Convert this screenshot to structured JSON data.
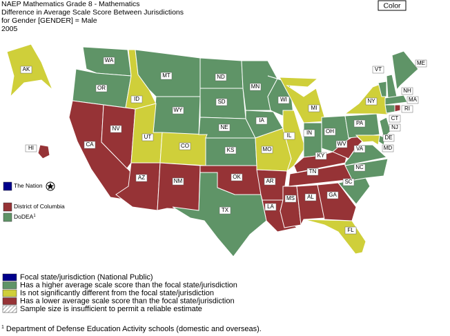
{
  "header": {
    "lines": [
      "NAEP Mathematics Grade 8 - Mathematics",
      "Difference in Average Scale Score Between Jurisdictions",
      "for Gender [GENDER] = Male",
      "2005"
    ]
  },
  "button": "Color",
  "colors": {
    "focal": "#00008b",
    "higher": "#5f9467",
    "same": "#cfcf3a",
    "lower": "#963336"
  },
  "states": [
    {
      "abbr": "WA",
      "status": "higher"
    },
    {
      "abbr": "OR",
      "status": "higher"
    },
    {
      "abbr": "CA",
      "status": "lower"
    },
    {
      "abbr": "NV",
      "status": "lower"
    },
    {
      "abbr": "ID",
      "status": "same"
    },
    {
      "abbr": "MT",
      "status": "higher"
    },
    {
      "abbr": "WY",
      "status": "higher"
    },
    {
      "abbr": "UT",
      "status": "same"
    },
    {
      "abbr": "CO",
      "status": "same"
    },
    {
      "abbr": "AZ",
      "status": "lower"
    },
    {
      "abbr": "NM",
      "status": "lower"
    },
    {
      "abbr": "ND",
      "status": "higher"
    },
    {
      "abbr": "SD",
      "status": "higher"
    },
    {
      "abbr": "NE",
      "status": "higher"
    },
    {
      "abbr": "KS",
      "status": "higher"
    },
    {
      "abbr": "OK",
      "status": "lower"
    },
    {
      "abbr": "TX",
      "status": "higher"
    },
    {
      "abbr": "MN",
      "status": "higher"
    },
    {
      "abbr": "IA",
      "status": "higher"
    },
    {
      "abbr": "MO",
      "status": "same"
    },
    {
      "abbr": "AR",
      "status": "lower"
    },
    {
      "abbr": "LA",
      "status": "lower"
    },
    {
      "abbr": "WI",
      "status": "higher"
    },
    {
      "abbr": "IL",
      "status": "same"
    },
    {
      "abbr": "MI",
      "status": "same"
    },
    {
      "abbr": "IN",
      "status": "higher"
    },
    {
      "abbr": "OH",
      "status": "higher"
    },
    {
      "abbr": "KY",
      "status": "lower"
    },
    {
      "abbr": "TN",
      "status": "lower"
    },
    {
      "abbr": "MS",
      "status": "lower"
    },
    {
      "abbr": "AL",
      "status": "lower"
    },
    {
      "abbr": "GA",
      "status": "lower"
    },
    {
      "abbr": "FL",
      "status": "same"
    },
    {
      "abbr": "SC",
      "status": "higher"
    },
    {
      "abbr": "NC",
      "status": "higher"
    },
    {
      "abbr": "VA",
      "status": "higher"
    },
    {
      "abbr": "WV",
      "status": "lower"
    },
    {
      "abbr": "PA",
      "status": "higher"
    },
    {
      "abbr": "NY",
      "status": "same"
    },
    {
      "abbr": "NJ",
      "status": "higher"
    },
    {
      "abbr": "DE",
      "status": "higher"
    },
    {
      "abbr": "MD",
      "status": "same"
    },
    {
      "abbr": "VT",
      "status": "higher"
    },
    {
      "abbr": "NH",
      "status": "higher"
    },
    {
      "abbr": "ME",
      "status": "higher"
    },
    {
      "abbr": "MA",
      "status": "higher"
    },
    {
      "abbr": "CT",
      "status": "higher"
    },
    {
      "abbr": "RI",
      "status": "lower"
    },
    {
      "abbr": "AK",
      "status": "same"
    },
    {
      "abbr": "HI",
      "status": "lower"
    }
  ],
  "side_legend": [
    {
      "label": "The Nation",
      "status": "focal"
    },
    {
      "label": "District of Columbia",
      "status": "lower"
    },
    {
      "label": "DoDEA",
      "sup": "1",
      "status": "higher"
    }
  ],
  "legend": [
    {
      "label": "Focal state/jurisdiction (National Public)",
      "status": "focal"
    },
    {
      "label": "Has a higher average scale score than the focal state/jurisdiction",
      "status": "higher"
    },
    {
      "label": "Is not significantly different from the focal state/jurisdiction",
      "status": "same"
    },
    {
      "label": "Has a lower average scale score than the focal state/jurisdiction",
      "status": "lower"
    },
    {
      "label": "Sample size is insufficient to permit a reliable estimate",
      "status": "insufficient"
    }
  ],
  "footnote": {
    "mark": "1",
    "text": "Department of Defense Education Activity schools (domestic and overseas)."
  }
}
